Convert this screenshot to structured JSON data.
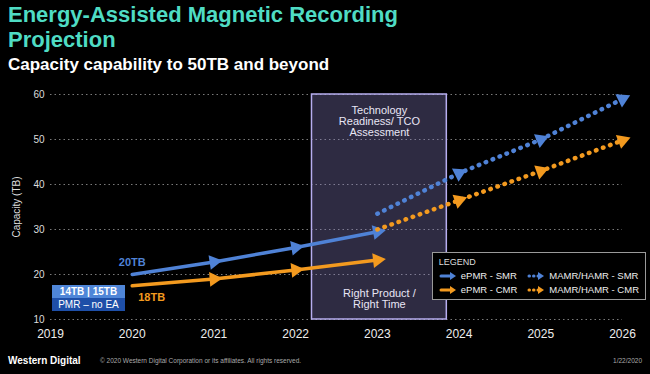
{
  "chart_data": {
    "type": "line",
    "title": "Energy-Assisted Magnetic Recording Projection",
    "subtitle": "Capacity capability to 50TB and beyond",
    "y_label": "Capacity (TB)",
    "xlim": [
      2019,
      2026
    ],
    "xticks": [
      2019,
      2020,
      2021,
      2022,
      2023,
      2024,
      2025,
      2026
    ],
    "ylim": [
      10,
      60
    ],
    "yticks": [
      10,
      20,
      30,
      40,
      50,
      60
    ],
    "grid": true,
    "legend": "bottom-right",
    "legend_title": "LEGEND",
    "series": [
      {
        "name": "ePMR - SMR",
        "color": "#4f82d6",
        "marker": "arrow",
        "line_style": "solid",
        "x": [
          2020,
          2021,
          2022,
          2023
        ],
        "values": [
          20,
          22.8,
          26,
          29.5
        ]
      },
      {
        "name": "ePMR - CMR",
        "color": "#f39a1f",
        "marker": "arrow",
        "line_style": "solid",
        "x": [
          2020,
          2021,
          2022,
          2023
        ],
        "values": [
          17.5,
          19,
          21,
          23.2
        ]
      },
      {
        "name": "MAMR/HAMR - SMR",
        "color": "#4f82d6",
        "marker": "arrow",
        "line_style": "dotted",
        "x": [
          2023,
          2024,
          2025,
          2026
        ],
        "values": [
          33.5,
          42.5,
          50,
          59
        ]
      },
      {
        "name": "MAMR/HAMR - CMR",
        "color": "#f39a1f",
        "marker": "arrow",
        "line_style": "dotted",
        "x": [
          2023,
          2024,
          2025,
          2026
        ],
        "values": [
          30,
          36.5,
          43,
          49.8
        ]
      }
    ],
    "annotations": [
      {
        "text": "20TB",
        "series": "ePMR - SMR"
      },
      {
        "text": "18TB",
        "series": "ePMR - CMR"
      }
    ],
    "pmr_labels": [
      "14TB | 15TB",
      "PMR – no EA"
    ],
    "period": {
      "x": [
        2022.2,
        2023.85
      ],
      "labels": [
        "Technology Readiness/ TCO Assessment",
        "Right Product / Right Time"
      ]
    }
  },
  "footer": {
    "brand": "Western Digital",
    "copyright": "© 2020 Western Digital Corporation or its affiliates. All rights reserved.",
    "date": "1/22/2020"
  }
}
